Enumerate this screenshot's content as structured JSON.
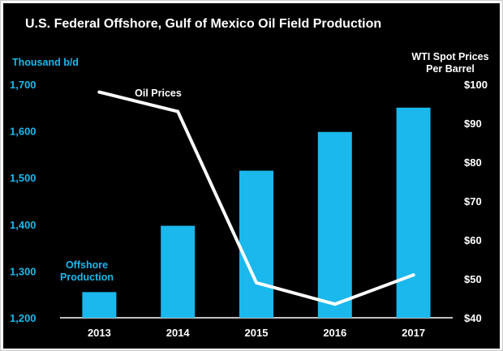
{
  "chart_data": {
    "type": "bar",
    "title": "U.S. Federal Offshore, Gulf of Mexico Oil Field Production",
    "categories": [
      "2013",
      "2014",
      "2015",
      "2016",
      "2017"
    ],
    "left_axis": {
      "label": "Thousand b/d",
      "range": [
        1200,
        1700
      ],
      "ticks": [
        "1,200",
        "1,300",
        "1,400",
        "1,500",
        "1,600",
        "1,700"
      ]
    },
    "right_axis": {
      "label_line1": "WTI Spot Prices",
      "label_line2": "Per Barrel",
      "range": [
        40,
        100
      ],
      "ticks": [
        "$40",
        "$50",
        "$60",
        "$70",
        "$80",
        "$90",
        "$100"
      ]
    },
    "series": [
      {
        "name": "Offshore Production",
        "name_line1": "Offshore",
        "name_line2": "Production",
        "type": "bar",
        "axis": "left",
        "color": "#1ab8ed",
        "values": [
          1255,
          1397,
          1515,
          1598,
          1650
        ]
      },
      {
        "name": "Oil Prices",
        "type": "line",
        "axis": "right",
        "color": "#ffffff",
        "values": [
          98,
          93,
          49,
          43.5,
          51
        ]
      }
    ],
    "grid": false,
    "legend": "inline labels"
  },
  "colors": {
    "background": "#000000",
    "bars": "#1ab8ed",
    "line": "#ffffff",
    "left_axis_text": "#1ab8ed",
    "text": "#ffffff"
  }
}
